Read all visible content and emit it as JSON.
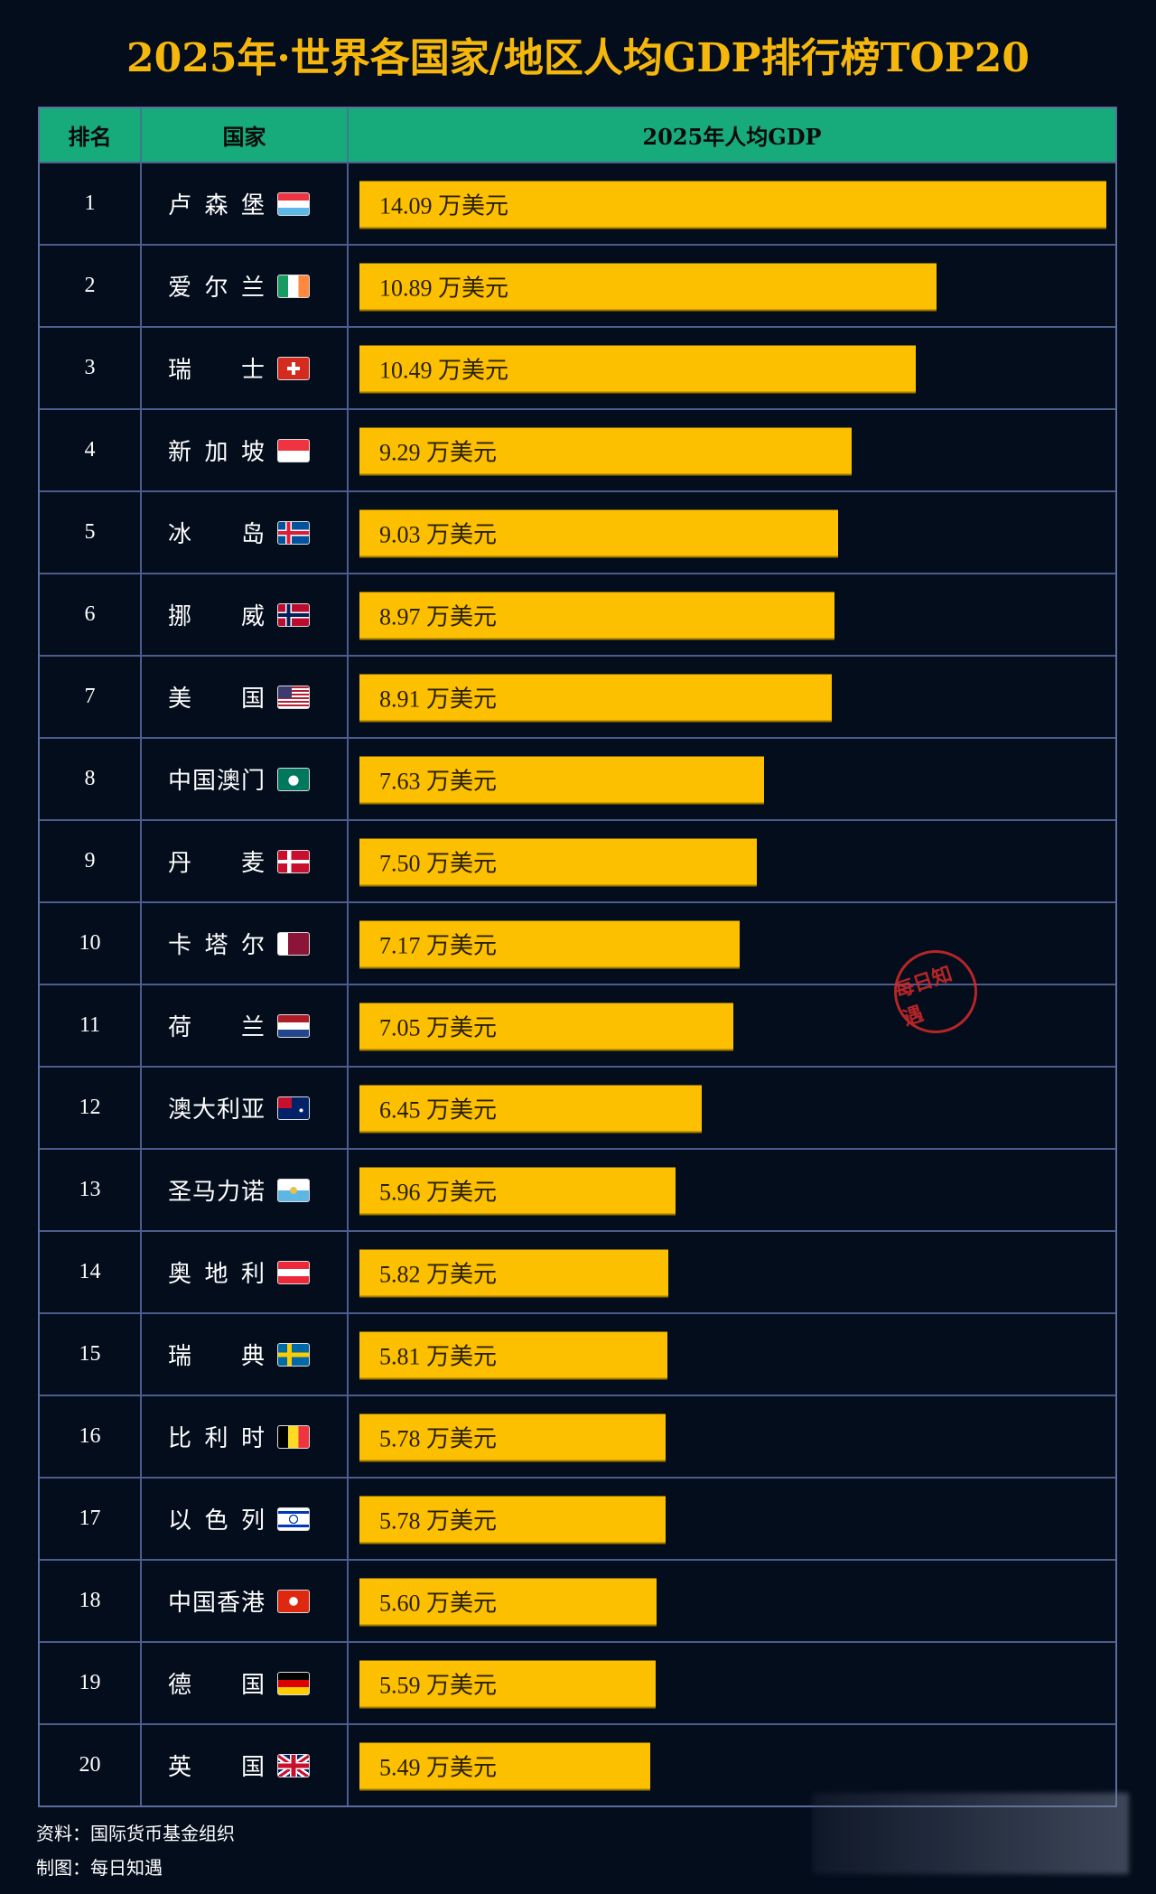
{
  "title": "2025年·世界各国家/地区人均GDP排行榜TOP20",
  "stamp_text": "每日知遇",
  "footer": {
    "source": "资料：国际货币基金组织",
    "maker": "制图：每日知遇"
  },
  "colors": {
    "background": "#040d1c",
    "header": "#17ab7b",
    "bar": "#fcc000",
    "title": "#f6b70c"
  },
  "chart_data": {
    "type": "bar",
    "orientation": "horizontal",
    "columns": [
      "排名",
      "国家",
      "2025年人均GDP"
    ],
    "unit": "万美元",
    "xlim": [
      0,
      14.09
    ],
    "rows": [
      {
        "rank": "1",
        "country": "卢森堡",
        "flag": "luxembourg-flag",
        "value": 14.09,
        "label": "14.09 万美元"
      },
      {
        "rank": "2",
        "country": "爱尔兰",
        "flag": "ireland-flag",
        "value": 10.89,
        "label": "10.89 万美元"
      },
      {
        "rank": "3",
        "country": "瑞士",
        "flag": "switzerland-flag",
        "value": 10.49,
        "label": "10.49 万美元"
      },
      {
        "rank": "4",
        "country": "新加坡",
        "flag": "singapore-flag",
        "value": 9.29,
        "label": "9.29 万美元"
      },
      {
        "rank": "5",
        "country": "冰岛",
        "flag": "iceland-flag",
        "value": 9.03,
        "label": "9.03 万美元"
      },
      {
        "rank": "6",
        "country": "挪威",
        "flag": "norway-flag",
        "value": 8.97,
        "label": "8.97 万美元"
      },
      {
        "rank": "7",
        "country": "美国",
        "flag": "usa-flag",
        "value": 8.91,
        "label": "8.91 万美元"
      },
      {
        "rank": "8",
        "country": "中国澳门",
        "flag": "macau-flag",
        "value": 7.63,
        "label": "7.63 万美元"
      },
      {
        "rank": "9",
        "country": "丹麦",
        "flag": "denmark-flag",
        "value": 7.5,
        "label": "7.50 万美元"
      },
      {
        "rank": "10",
        "country": "卡塔尔",
        "flag": "qatar-flag",
        "value": 7.17,
        "label": "7.17 万美元"
      },
      {
        "rank": "11",
        "country": "荷兰",
        "flag": "netherlands-flag",
        "value": 7.05,
        "label": "7.05 万美元"
      },
      {
        "rank": "12",
        "country": "澳大利亚",
        "flag": "australia-flag",
        "value": 6.45,
        "label": "6.45 万美元"
      },
      {
        "rank": "13",
        "country": "圣马力诺",
        "flag": "san-marino-flag",
        "value": 5.96,
        "label": "5.96 万美元"
      },
      {
        "rank": "14",
        "country": "奥地利",
        "flag": "austria-flag",
        "value": 5.82,
        "label": "5.82 万美元"
      },
      {
        "rank": "15",
        "country": "瑞典",
        "flag": "sweden-flag",
        "value": 5.81,
        "label": "5.81 万美元"
      },
      {
        "rank": "16",
        "country": "比利时",
        "flag": "belgium-flag",
        "value": 5.78,
        "label": "5.78 万美元"
      },
      {
        "rank": "17",
        "country": "以色列",
        "flag": "israel-flag",
        "value": 5.78,
        "label": "5.78 万美元"
      },
      {
        "rank": "18",
        "country": "中国香港",
        "flag": "hong-kong-flag",
        "value": 5.6,
        "label": "5.60 万美元"
      },
      {
        "rank": "19",
        "country": "德国",
        "flag": "germany-flag",
        "value": 5.59,
        "label": "5.59 万美元"
      },
      {
        "rank": "20",
        "country": "英国",
        "flag": "uk-flag",
        "value": 5.49,
        "label": "5.49 万美元"
      }
    ]
  }
}
